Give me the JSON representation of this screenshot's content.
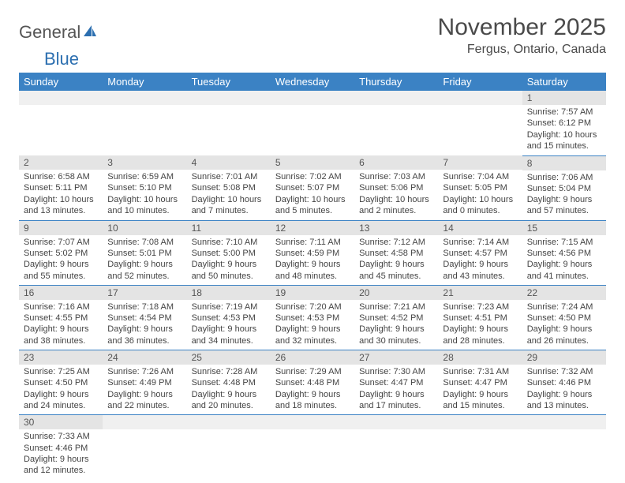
{
  "logo": {
    "text1": "General",
    "text2": "Blue"
  },
  "header": {
    "month": "November 2025",
    "location": "Fergus, Ontario, Canada"
  },
  "colors": {
    "header_bg": "#3b82c4",
    "header_text": "#ffffff",
    "daynum_bg": "#e4e4e4",
    "row_border": "#3b82c4",
    "text": "#444444",
    "logo_gray": "#555555",
    "logo_blue": "#2c6fb0"
  },
  "day_labels": [
    "Sunday",
    "Monday",
    "Tuesday",
    "Wednesday",
    "Thursday",
    "Friday",
    "Saturday"
  ],
  "weeks": [
    [
      {
        "blank": true
      },
      {
        "blank": true
      },
      {
        "blank": true
      },
      {
        "blank": true
      },
      {
        "blank": true
      },
      {
        "blank": true
      },
      {
        "n": "1",
        "sunrise": "Sunrise: 7:57 AM",
        "sunset": "Sunset: 6:12 PM",
        "daylight": "Daylight: 10 hours and 15 minutes."
      }
    ],
    [
      {
        "n": "2",
        "sunrise": "Sunrise: 6:58 AM",
        "sunset": "Sunset: 5:11 PM",
        "daylight": "Daylight: 10 hours and 13 minutes."
      },
      {
        "n": "3",
        "sunrise": "Sunrise: 6:59 AM",
        "sunset": "Sunset: 5:10 PM",
        "daylight": "Daylight: 10 hours and 10 minutes."
      },
      {
        "n": "4",
        "sunrise": "Sunrise: 7:01 AM",
        "sunset": "Sunset: 5:08 PM",
        "daylight": "Daylight: 10 hours and 7 minutes."
      },
      {
        "n": "5",
        "sunrise": "Sunrise: 7:02 AM",
        "sunset": "Sunset: 5:07 PM",
        "daylight": "Daylight: 10 hours and 5 minutes."
      },
      {
        "n": "6",
        "sunrise": "Sunrise: 7:03 AM",
        "sunset": "Sunset: 5:06 PM",
        "daylight": "Daylight: 10 hours and 2 minutes."
      },
      {
        "n": "7",
        "sunrise": "Sunrise: 7:04 AM",
        "sunset": "Sunset: 5:05 PM",
        "daylight": "Daylight: 10 hours and 0 minutes."
      },
      {
        "n": "8",
        "sunrise": "Sunrise: 7:06 AM",
        "sunset": "Sunset: 5:04 PM",
        "daylight": "Daylight: 9 hours and 57 minutes."
      }
    ],
    [
      {
        "n": "9",
        "sunrise": "Sunrise: 7:07 AM",
        "sunset": "Sunset: 5:02 PM",
        "daylight": "Daylight: 9 hours and 55 minutes."
      },
      {
        "n": "10",
        "sunrise": "Sunrise: 7:08 AM",
        "sunset": "Sunset: 5:01 PM",
        "daylight": "Daylight: 9 hours and 52 minutes."
      },
      {
        "n": "11",
        "sunrise": "Sunrise: 7:10 AM",
        "sunset": "Sunset: 5:00 PM",
        "daylight": "Daylight: 9 hours and 50 minutes."
      },
      {
        "n": "12",
        "sunrise": "Sunrise: 7:11 AM",
        "sunset": "Sunset: 4:59 PM",
        "daylight": "Daylight: 9 hours and 48 minutes."
      },
      {
        "n": "13",
        "sunrise": "Sunrise: 7:12 AM",
        "sunset": "Sunset: 4:58 PM",
        "daylight": "Daylight: 9 hours and 45 minutes."
      },
      {
        "n": "14",
        "sunrise": "Sunrise: 7:14 AM",
        "sunset": "Sunset: 4:57 PM",
        "daylight": "Daylight: 9 hours and 43 minutes."
      },
      {
        "n": "15",
        "sunrise": "Sunrise: 7:15 AM",
        "sunset": "Sunset: 4:56 PM",
        "daylight": "Daylight: 9 hours and 41 minutes."
      }
    ],
    [
      {
        "n": "16",
        "sunrise": "Sunrise: 7:16 AM",
        "sunset": "Sunset: 4:55 PM",
        "daylight": "Daylight: 9 hours and 38 minutes."
      },
      {
        "n": "17",
        "sunrise": "Sunrise: 7:18 AM",
        "sunset": "Sunset: 4:54 PM",
        "daylight": "Daylight: 9 hours and 36 minutes."
      },
      {
        "n": "18",
        "sunrise": "Sunrise: 7:19 AM",
        "sunset": "Sunset: 4:53 PM",
        "daylight": "Daylight: 9 hours and 34 minutes."
      },
      {
        "n": "19",
        "sunrise": "Sunrise: 7:20 AM",
        "sunset": "Sunset: 4:53 PM",
        "daylight": "Daylight: 9 hours and 32 minutes."
      },
      {
        "n": "20",
        "sunrise": "Sunrise: 7:21 AM",
        "sunset": "Sunset: 4:52 PM",
        "daylight": "Daylight: 9 hours and 30 minutes."
      },
      {
        "n": "21",
        "sunrise": "Sunrise: 7:23 AM",
        "sunset": "Sunset: 4:51 PM",
        "daylight": "Daylight: 9 hours and 28 minutes."
      },
      {
        "n": "22",
        "sunrise": "Sunrise: 7:24 AM",
        "sunset": "Sunset: 4:50 PM",
        "daylight": "Daylight: 9 hours and 26 minutes."
      }
    ],
    [
      {
        "n": "23",
        "sunrise": "Sunrise: 7:25 AM",
        "sunset": "Sunset: 4:50 PM",
        "daylight": "Daylight: 9 hours and 24 minutes."
      },
      {
        "n": "24",
        "sunrise": "Sunrise: 7:26 AM",
        "sunset": "Sunset: 4:49 PM",
        "daylight": "Daylight: 9 hours and 22 minutes."
      },
      {
        "n": "25",
        "sunrise": "Sunrise: 7:28 AM",
        "sunset": "Sunset: 4:48 PM",
        "daylight": "Daylight: 9 hours and 20 minutes."
      },
      {
        "n": "26",
        "sunrise": "Sunrise: 7:29 AM",
        "sunset": "Sunset: 4:48 PM",
        "daylight": "Daylight: 9 hours and 18 minutes."
      },
      {
        "n": "27",
        "sunrise": "Sunrise: 7:30 AM",
        "sunset": "Sunset: 4:47 PM",
        "daylight": "Daylight: 9 hours and 17 minutes."
      },
      {
        "n": "28",
        "sunrise": "Sunrise: 7:31 AM",
        "sunset": "Sunset: 4:47 PM",
        "daylight": "Daylight: 9 hours and 15 minutes."
      },
      {
        "n": "29",
        "sunrise": "Sunrise: 7:32 AM",
        "sunset": "Sunset: 4:46 PM",
        "daylight": "Daylight: 9 hours and 13 minutes."
      }
    ],
    [
      {
        "n": "30",
        "sunrise": "Sunrise: 7:33 AM",
        "sunset": "Sunset: 4:46 PM",
        "daylight": "Daylight: 9 hours and 12 minutes."
      },
      {
        "blank": true
      },
      {
        "blank": true
      },
      {
        "blank": true
      },
      {
        "blank": true
      },
      {
        "blank": true
      },
      {
        "blank": true
      }
    ]
  ]
}
